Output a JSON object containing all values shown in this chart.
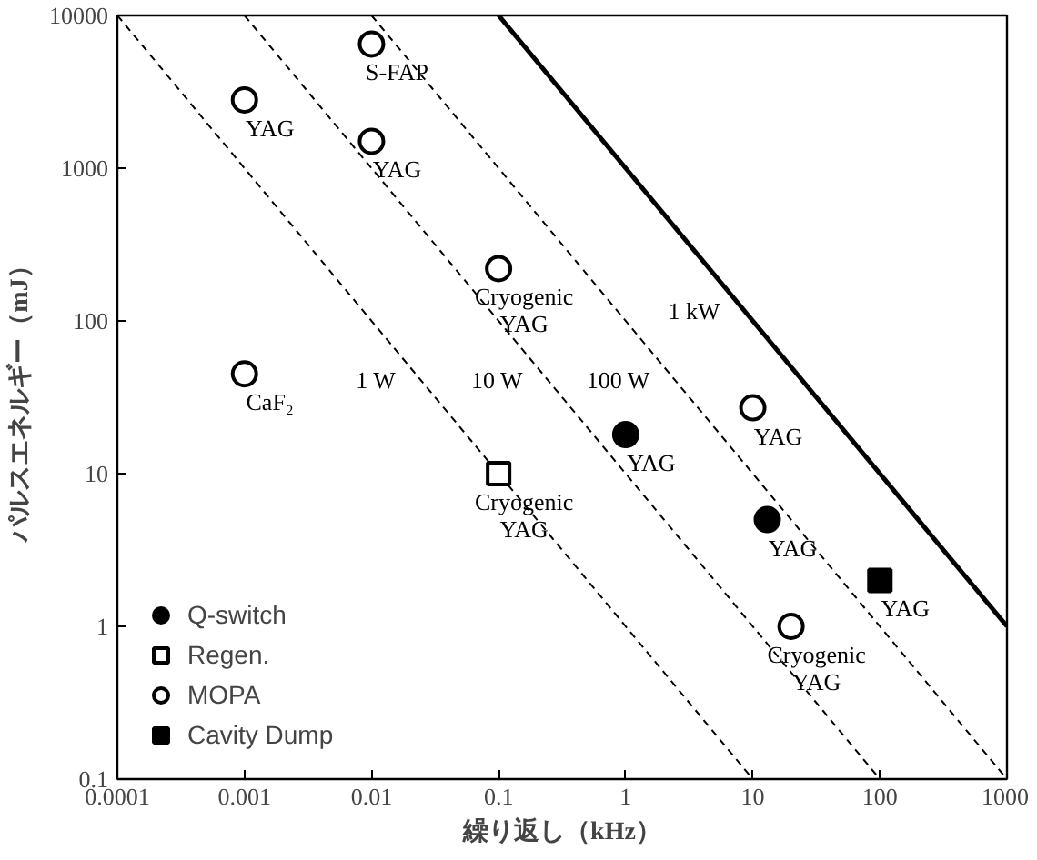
{
  "chart_data": {
    "type": "scatter",
    "xlabel": "繰り返し（kHz）",
    "ylabel": "パルスエネルギー（mJ）",
    "log": "xy",
    "grid": false,
    "legend": "bottom left",
    "xlim": [
      0.0001,
      1000
    ],
    "ylim": [
      0.1,
      10000
    ],
    "xticks": [
      0.0001,
      0.001,
      0.01,
      0.1,
      1,
      10,
      100,
      1000
    ],
    "yticks": [
      0.1,
      1,
      10,
      100,
      1000,
      10000
    ],
    "series": [
      {
        "type": "line",
        "name": "1 W",
        "color": "#000000",
        "line_style": "dashed",
        "x": [
          0.0001,
          10
        ],
        "values": [
          10000,
          0.1
        ]
      },
      {
        "type": "line",
        "name": "10 W",
        "color": "#000000",
        "line_style": "dashed",
        "x": [
          0.001,
          100
        ],
        "values": [
          10000,
          0.1
        ]
      },
      {
        "type": "line",
        "name": "100 W",
        "color": "#000000",
        "line_style": "dashed",
        "x": [
          0.01,
          1000
        ],
        "values": [
          10000,
          0.1
        ]
      },
      {
        "type": "line",
        "name": "1 kW",
        "color": "#000000",
        "line_style": "solid",
        "x": [
          0.1,
          1000
        ],
        "values": [
          10000,
          1
        ]
      },
      {
        "name": "Q-switch",
        "color": "#000000",
        "marker": "circle",
        "x": [
          1,
          13
        ],
        "values": [
          18,
          5
        ]
      },
      {
        "name": "Regen.",
        "color": "#000000",
        "marker": "square_open",
        "x": [
          0.1
        ],
        "values": [
          10
        ]
      },
      {
        "name": "MOPA",
        "color": "#000000",
        "marker": "circle_open",
        "x": [
          0.01,
          0.001,
          0.01,
          0.1,
          0.001,
          10,
          20
        ],
        "values": [
          6500,
          2800,
          1500,
          220,
          45,
          27,
          1
        ]
      },
      {
        "name": "Cavity Dump",
        "color": "#000000",
        "marker": "square",
        "x": [
          100
        ],
        "values": [
          2
        ]
      }
    ],
    "annotations": [
      {
        "text": "S-FAP",
        "x": 0.01,
        "y": 6500
      },
      {
        "text": "YAG",
        "x": 0.001,
        "y": 2800
      },
      {
        "text": "YAG",
        "x": 0.01,
        "y": 1500
      },
      {
        "text": "Cryogenic\nYAG",
        "x": 0.1,
        "y": 220
      },
      {
        "text": "CaF₂",
        "x": 0.001,
        "y": 45
      },
      {
        "text": "Cryogenic\nYAG",
        "x": 0.1,
        "y": 10
      },
      {
        "text": "YAG",
        "x": 1,
        "y": 18
      },
      {
        "text": "YAG",
        "x": 10,
        "y": 27
      },
      {
        "text": "YAG",
        "x": 13,
        "y": 5
      },
      {
        "text": "YAG",
        "x": 100,
        "y": 2
      },
      {
        "text": "Cryogenic\nYAG",
        "x": 20,
        "y": 1
      }
    ]
  }
}
